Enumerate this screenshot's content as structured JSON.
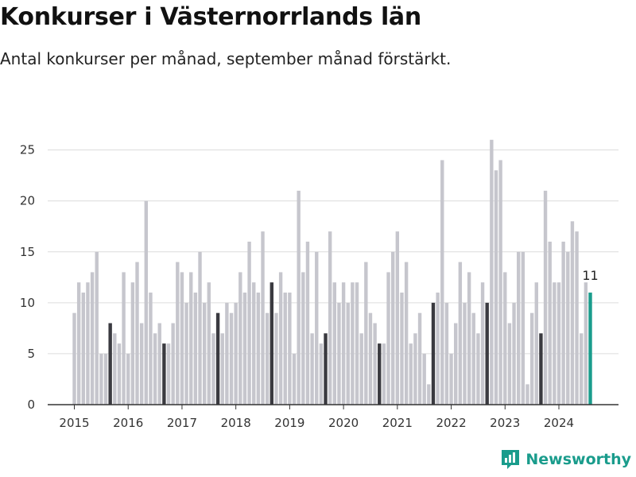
{
  "title": "Konkurser i Västernorrlands län",
  "subtitle": "Antal konkurser per månad, september månad förstärkt.",
  "logo_text": "Newsworthy",
  "colors": {
    "bar": "#c6c6cd",
    "highlight": "#3a3a40",
    "latest": "#1a9c8c",
    "grid": "#dcdcdc",
    "axis": "#333333",
    "text": "#333333"
  },
  "chart_data": {
    "type": "bar",
    "title": "Konkurser i Västernorrlands län",
    "subtitle": "Antal konkurser per månad, september månad förstärkt.",
    "x_start": "2015-01",
    "highlight_month": 9,
    "latest_label": "11",
    "ylim": [
      0,
      27
    ],
    "yticks": [
      0,
      5,
      10,
      15,
      20,
      25
    ],
    "xticks": [
      "2015",
      "2016",
      "2017",
      "2018",
      "2019",
      "2020",
      "2021",
      "2022",
      "2023",
      "2024"
    ],
    "grid": true,
    "values": [
      9,
      12,
      11,
      12,
      13,
      15,
      5,
      5,
      8,
      7,
      6,
      13,
      5,
      12,
      14,
      8,
      20,
      11,
      7,
      8,
      6,
      6,
      8,
      14,
      13,
      10,
      13,
      11,
      15,
      10,
      12,
      7,
      9,
      7,
      10,
      9,
      10,
      13,
      11,
      16,
      12,
      11,
      17,
      9,
      12,
      9,
      13,
      11,
      11,
      5,
      21,
      13,
      16,
      7,
      15,
      6,
      7,
      17,
      12,
      10,
      12,
      10,
      12,
      12,
      7,
      14,
      9,
      8,
      6,
      6,
      13,
      15,
      17,
      11,
      14,
      6,
      7,
      9,
      5,
      2,
      10,
      11,
      24,
      10,
      5,
      8,
      14,
      10,
      13,
      9,
      7,
      12,
      10,
      26,
      23,
      24,
      13,
      8,
      10,
      15,
      15,
      2,
      9,
      12,
      7,
      21,
      16,
      12,
      12,
      16,
      15,
      18,
      17,
      7,
      12,
      11
    ]
  }
}
